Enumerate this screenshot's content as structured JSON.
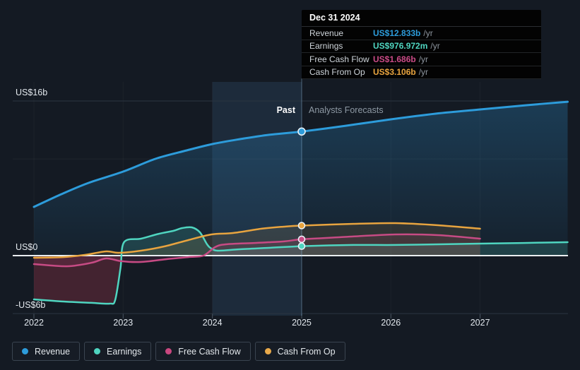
{
  "tooltip": {
    "date": "Dec 31 2024",
    "rows": [
      {
        "id": "revenue",
        "label": "Revenue",
        "value": "US$12.833b",
        "suffix": "/yr",
        "color": "#2d9cdb"
      },
      {
        "id": "earnings",
        "label": "Earnings",
        "value": "US$976.972m",
        "suffix": "/yr",
        "color": "#4fd5c0"
      },
      {
        "id": "free-cash-flow",
        "label": "Free Cash Flow",
        "value": "US$1.686b",
        "suffix": "/yr",
        "color": "#cb4b87"
      },
      {
        "id": "cash-from-op",
        "label": "Cash From Op",
        "value": "US$3.106b",
        "suffix": "/yr",
        "color": "#e8a43f"
      }
    ]
  },
  "annotations": {
    "past_label": "Past",
    "forecast_label": "Analysts Forecasts"
  },
  "legend": [
    {
      "id": "revenue",
      "label": "Revenue",
      "color": "#2d9cdb"
    },
    {
      "id": "earnings",
      "label": "Earnings",
      "color": "#4fd5c0"
    },
    {
      "id": "free-cash-flow",
      "label": "Free Cash Flow",
      "color": "#c9477f"
    },
    {
      "id": "cash-from-op",
      "label": "Cash From Op",
      "color": "#e8a94a"
    }
  ],
  "colors": {
    "page_background": "#141a23",
    "zero_line": "#e9edf0",
    "grid_line": "#2b3542",
    "grid_line_faint": "rgba(255,255,255,0.05)",
    "highlight_band": "rgba(84,152,204,0.14)",
    "divider_line": "rgba(140,185,220,0.45)"
  },
  "chart_data": {
    "type": "line",
    "title": "Past and forecast financials",
    "units": "US$ billions per year",
    "x_ticks": [
      "2022",
      "2023",
      "2024",
      "2025",
      "2026",
      "2027"
    ],
    "x_range": [
      2022,
      2027.98
    ],
    "y_ticks": [
      {
        "value": 16,
        "label": "US$16b",
        "faint": false
      },
      {
        "value": 10,
        "label": "",
        "faint": true
      },
      {
        "value": 0,
        "label": "US$0",
        "faint": false
      },
      {
        "value": -6,
        "label": "-US$6b",
        "faint": false
      }
    ],
    "ylim": [
      -6.3,
      18
    ],
    "grid": true,
    "legend_position": "bottom",
    "divider_x": 2025,
    "highlight_band_x": [
      2024,
      2025
    ],
    "marker_x": 2025,
    "series": [
      {
        "name": "Revenue",
        "color": "#2d9cdb",
        "width": 3,
        "fill": "blue-gradient",
        "points": [
          [
            2022,
            5.04
          ],
          [
            2022.29,
            6.28
          ],
          [
            2022.61,
            7.52
          ],
          [
            2023,
            8.69
          ],
          [
            2023.36,
            10.01
          ],
          [
            2023.68,
            10.81
          ],
          [
            2024,
            11.54
          ],
          [
            2024.31,
            12.05
          ],
          [
            2024.63,
            12.49
          ],
          [
            2025,
            12.833
          ],
          [
            2025.5,
            13.44
          ],
          [
            2026,
            14.1
          ],
          [
            2026.5,
            14.68
          ],
          [
            2027,
            15.12
          ],
          [
            2027.52,
            15.56
          ],
          [
            2027.98,
            15.92
          ]
        ]
      },
      {
        "name": "Earnings",
        "color": "#4fd5c0",
        "width": 2.5,
        "fill": "split",
        "fill_positive": "rgba(79,213,192,0.18)",
        "fill_negative": "rgba(205,62,90,0.26)",
        "points": [
          [
            2022,
            -4.53
          ],
          [
            2022.33,
            -4.75
          ],
          [
            2022.65,
            -4.89
          ],
          [
            2022.85,
            -4.97
          ],
          [
            2022.91,
            -4.6
          ],
          [
            2022.97,
            -1.31
          ],
          [
            2023.01,
            1.39
          ],
          [
            2023.2,
            1.75
          ],
          [
            2023.4,
            2.26
          ],
          [
            2023.56,
            2.56
          ],
          [
            2023.66,
            2.85
          ],
          [
            2023.77,
            2.92
          ],
          [
            2023.86,
            2.41
          ],
          [
            2023.94,
            1.17
          ],
          [
            2023.99,
            0.73
          ],
          [
            2024.07,
            0.51
          ],
          [
            2024.31,
            0.66
          ],
          [
            2024.63,
            0.8
          ],
          [
            2025,
            0.977
          ],
          [
            2025.58,
            1.1
          ],
          [
            2026.05,
            1.1
          ],
          [
            2026.53,
            1.17
          ],
          [
            2027,
            1.24
          ],
          [
            2027.48,
            1.31
          ],
          [
            2027.98,
            1.39
          ]
        ]
      },
      {
        "name": "Free Cash Flow",
        "color": "#c74b84",
        "width": 2.5,
        "fill": "flat",
        "fill_color": "rgba(201,71,132,0.13)",
        "points": [
          [
            2022,
            -0.88
          ],
          [
            2022.37,
            -1.1
          ],
          [
            2022.65,
            -0.73
          ],
          [
            2022.81,
            -0.29
          ],
          [
            2022.98,
            -0.58
          ],
          [
            2023.2,
            -0.66
          ],
          [
            2023.48,
            -0.37
          ],
          [
            2023.73,
            -0.15
          ],
          [
            2023.9,
            0
          ],
          [
            2024.03,
            0.88
          ],
          [
            2024.15,
            1.17
          ],
          [
            2024.47,
            1.31
          ],
          [
            2024.79,
            1.46
          ],
          [
            2025,
            1.686
          ],
          [
            2025.42,
            1.9
          ],
          [
            2026.05,
            2.19
          ],
          [
            2026.53,
            2.12
          ],
          [
            2027,
            1.75
          ]
        ]
      },
      {
        "name": "Cash From Op",
        "color": "#e8a43f",
        "width": 2.5,
        "fill": "flat",
        "fill_color": "rgba(232,164,63,0.12)",
        "points": [
          [
            2022,
            -0.22
          ],
          [
            2022.33,
            -0.15
          ],
          [
            2022.57,
            0.07
          ],
          [
            2022.81,
            0.44
          ],
          [
            2022.95,
            0.29
          ],
          [
            2023.2,
            0.51
          ],
          [
            2023.46,
            0.95
          ],
          [
            2023.73,
            1.61
          ],
          [
            2023.99,
            2.19
          ],
          [
            2024.23,
            2.34
          ],
          [
            2024.55,
            2.78
          ],
          [
            2024.79,
            2.99
          ],
          [
            2025,
            3.106
          ],
          [
            2025.58,
            3.29
          ],
          [
            2026.05,
            3.36
          ],
          [
            2026.53,
            3.14
          ],
          [
            2027,
            2.78
          ]
        ]
      }
    ]
  }
}
